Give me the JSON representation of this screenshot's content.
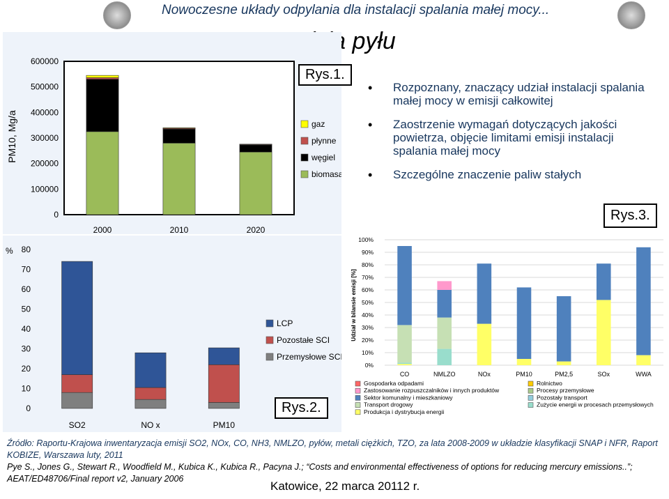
{
  "header": {
    "title": "Nowoczesne układy odpylania dla instalacji spalania małej mocy..."
  },
  "slide": {
    "title": "Emisja pyłu"
  },
  "chart_data": [
    {
      "type": "bar",
      "stacked": true,
      "title": "",
      "ylabel": "PM10, Mg/a",
      "categories": [
        "2000",
        "2010",
        "2020"
      ],
      "ylim": [
        0,
        600000
      ],
      "yticks": [
        "0",
        "100000",
        "200000",
        "300000",
        "400000",
        "500000",
        "600000"
      ],
      "series": [
        {
          "name": "biomasa",
          "color": "#9bbb59",
          "values": [
            325000,
            280000,
            245000
          ]
        },
        {
          "name": "węgiel",
          "color": "#000000",
          "values": [
            205000,
            55000,
            28000
          ]
        },
        {
          "name": "płynne",
          "color": "#c0504d",
          "values": [
            6000,
            3000,
            2000
          ]
        },
        {
          "name": "gaz",
          "color": "#ffff00",
          "values": [
            9000,
            2000,
            1000
          ]
        }
      ],
      "legend_order": [
        "gaz",
        "płynne",
        "węgiel",
        "biomasa"
      ],
      "caption": "Rys.1."
    },
    {
      "type": "bar",
      "stacked": true,
      "title": "",
      "ylabel": "%",
      "categories": [
        "SO2",
        "NO x",
        "PM10"
      ],
      "ylim": [
        0,
        80
      ],
      "yticks": [
        "0",
        "10",
        "20",
        "30",
        "40",
        "50",
        "60",
        "70",
        "80"
      ],
      "series": [
        {
          "name": "Przemysłowe SCI",
          "color": "#7f7f7f",
          "values": [
            8,
            4.5,
            3
          ]
        },
        {
          "name": "Pozostałe SCI",
          "color": "#c0504d",
          "values": [
            9,
            6,
            19
          ]
        },
        {
          "name": "LCP",
          "color": "#2f5597",
          "values": [
            57,
            17.5,
            8.5
          ]
        }
      ],
      "legend_order": [
        "LCP",
        "Pozostałe SCI",
        "Przemysłowe SCI"
      ],
      "caption": "Rys.2."
    },
    {
      "type": "bar",
      "stacked": true,
      "title": "",
      "ylabel": "Udział w bilansie emisji [%]",
      "categories": [
        "CO",
        "NMLZO",
        "NOx",
        "PM10",
        "PM2,5",
        "SOx",
        "WWA"
      ],
      "ylim": [
        0,
        100
      ],
      "yticks": [
        "0%",
        "10%",
        "20%",
        "30%",
        "40%",
        "50%",
        "60%",
        "70%",
        "80%",
        "90%",
        "100%"
      ],
      "series": [
        {
          "name": "Produkcja i dystrybucja energii",
          "color": "#ffff66",
          "values": [
            1,
            0,
            33,
            5,
            3,
            52,
            8
          ]
        },
        {
          "name": "Zużycie energii w procesach przemysłowych",
          "color": "#99ddcc",
          "values": [
            1,
            13,
            0,
            0,
            0,
            0,
            0
          ]
        },
        {
          "name": "Transport drogowy",
          "color": "#c6e0b4",
          "values": [
            30,
            25,
            0,
            0,
            0,
            0,
            0
          ]
        },
        {
          "name": "Procesy przemysłowe",
          "color": "#a9c98b",
          "values": [
            0,
            0,
            0,
            0,
            0,
            0,
            0
          ]
        },
        {
          "name": "Sektor komunalny i mieszkaniowy",
          "color": "#4f81bd",
          "values": [
            63,
            22,
            48,
            57,
            52,
            29,
            86
          ]
        },
        {
          "name": "Zastosowanie rozpuszczalników i innych produktów",
          "color": "#ff99cc",
          "values": [
            0,
            7,
            0,
            0,
            0,
            0,
            0
          ]
        },
        {
          "name": "Pozostały transport",
          "color": "#93cddd",
          "values": [
            0,
            0,
            0,
            0,
            0,
            0,
            0
          ]
        },
        {
          "name": "Gospodarka odpadami",
          "color": "#ff6666",
          "values": [
            0,
            0,
            0,
            0,
            0,
            0,
            0
          ]
        },
        {
          "name": "Rolnictwo",
          "color": "#ffcc00",
          "values": [
            0,
            0,
            0,
            0,
            0,
            0,
            0
          ]
        }
      ],
      "legend_order": [
        "Gospodarka odpadami",
        "Rolnictwo",
        "Zastosowanie rozpuszczalników i innych produktów",
        "Procesy przemysłowe",
        "Sektor komunalny i mieszkaniowy",
        "Pozostały transport",
        "Transport drogowy",
        "Zużycie energii w procesach przemysłowych",
        "Produkcja i dystrybucja energii"
      ],
      "caption": "Rys.3."
    }
  ],
  "bullets": [
    "Rozpoznany, znaczący udział instalacji spalania małej mocy w emisji całkowitej",
    "Zaostrzenie wymagań dotyczących jakości powietrza, objęcie limitami emisji instalacji spalania małej mocy",
    "Szczególne znaczenie paliw stałych"
  ],
  "footer": {
    "source1": "Źródło: Raportu-Krajowa inwentaryzacja emisji SO2, NOx, CO, NH3, NMLZO, pyłów, metali ciężkich, TZO, za lata 2008-2009 w układzie klasyfikacji SNAP i NFR, Raport KOBIZE, Warszawa luty, 2011",
    "source2": "Pye S., Jones G., Stewart R., Woodfield M., Kubica K., Kubica R., Pacyna J.; “Costs and environmental effectiveness of options for reducing mercury emissions..”; AEAT/ED48706/Final report v2, January 2006",
    "date": "Katowice, 22 marca 20112 r."
  }
}
